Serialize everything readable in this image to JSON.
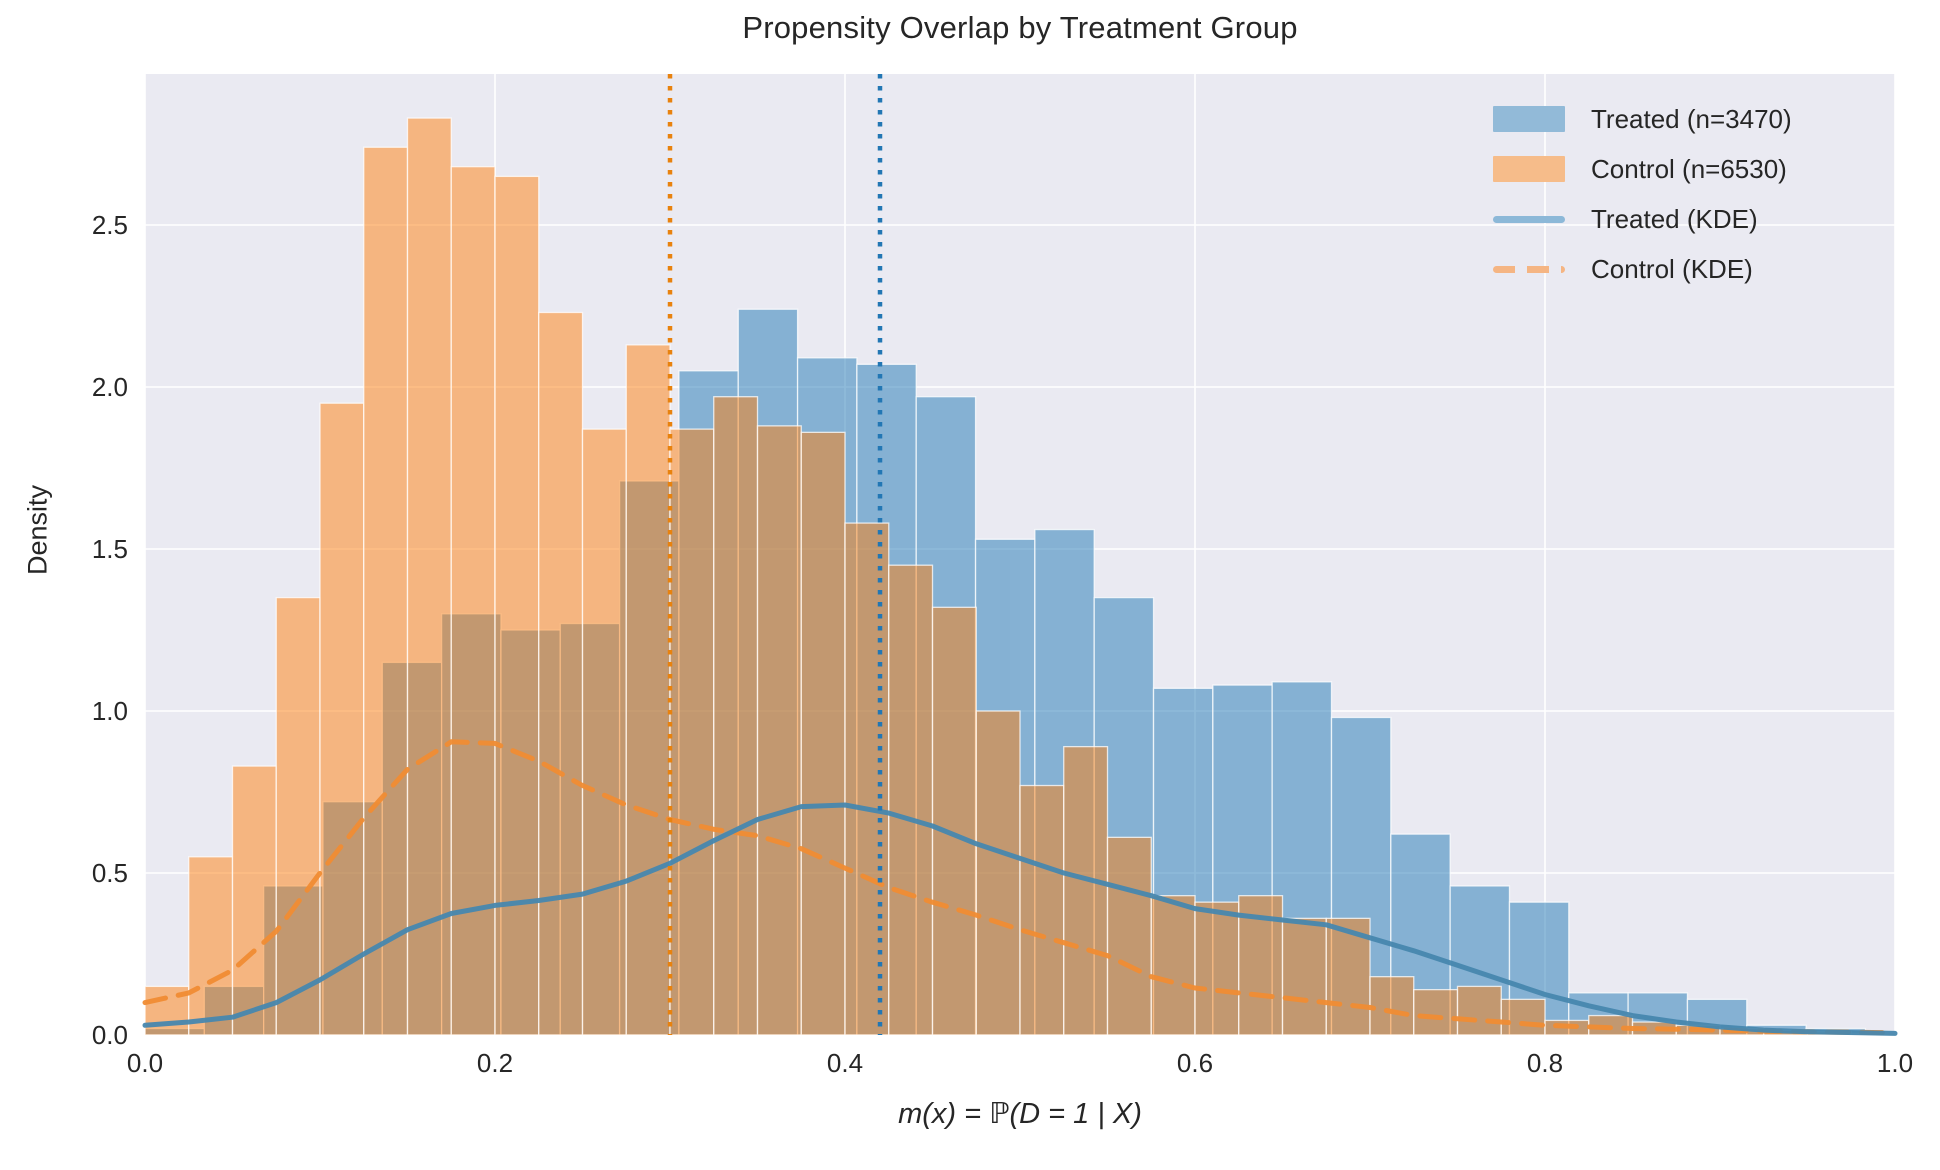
{
  "title": "Propensity Overlap by Treatment Group",
  "colors": {
    "figure_background": "#ffffff",
    "axes_background": "#eaeaf2",
    "gridline": "#ffffff",
    "treated_fill": "#1f77b4",
    "control_fill": "#ff7f0e",
    "treated_kde_line": "#4787ae",
    "control_kde_line": "#f08c33",
    "treated_vline": "#2277b4",
    "control_vline": "#e8820e",
    "bar_edge": "#ffffff",
    "text": "#262626"
  },
  "legend": {
    "entries": [
      {
        "label": "Treated (n=3470)",
        "swatch": "patch",
        "color": "#92bad8"
      },
      {
        "label": "Control (n=6530)",
        "swatch": "patch",
        "color": "#f6bc8a"
      },
      {
        "label": "Treated (KDE)",
        "swatch": "line",
        "color": "#8cb8d8"
      },
      {
        "label": "Control (KDE)",
        "swatch": "dashed",
        "color": "#f5b583"
      }
    ]
  },
  "chart_data": {
    "type": "histogram+kde",
    "title": "Propensity Overlap by Treatment Group",
    "xlabel": "m(x) = ℙ(D = 1 | X)",
    "ylabel": "Density",
    "xlim": [
      0,
      1
    ],
    "ylim": [
      0,
      2.97
    ],
    "grid": true,
    "legend_position": "upper right",
    "x_ticks": [
      0,
      0.2,
      0.4,
      0.6,
      0.8,
      1.0
    ],
    "x_tick_labels": [
      "0.0",
      "0.2",
      "0.4",
      "0.6",
      "0.8",
      "1.0"
    ],
    "y_ticks": [
      0,
      0.5,
      1.0,
      1.5,
      2.0,
      2.5
    ],
    "y_tick_labels": [
      "0.0",
      "0.5",
      "1.0",
      "1.5",
      "2.0",
      "2.5"
    ],
    "series": [
      {
        "name": "Treated (n=3470)",
        "type": "histogram",
        "color_key": "treated_fill",
        "fill_opacity": 0.5,
        "bin_start": 0.0,
        "bin_width": 0.0339,
        "densities": [
          0.02,
          0.15,
          0.46,
          0.72,
          1.15,
          1.3,
          1.25,
          1.27,
          1.71,
          2.05,
          2.24,
          2.09,
          2.07,
          1.97,
          1.53,
          1.56,
          1.35,
          1.07,
          1.08,
          1.09,
          0.98,
          0.62,
          0.46,
          0.41,
          0.13,
          0.13,
          0.11,
          0.03,
          0.02
        ]
      },
      {
        "name": "Control (n=6530)",
        "type": "histogram",
        "color_key": "control_fill",
        "fill_opacity": 0.5,
        "bin_start": 0.0,
        "bin_width": 0.025,
        "densities": [
          0.15,
          0.55,
          0.83,
          1.35,
          1.95,
          2.74,
          2.83,
          2.68,
          2.65,
          2.23,
          1.87,
          2.13,
          1.87,
          1.97,
          1.88,
          1.86,
          1.58,
          1.45,
          1.32,
          1.0,
          0.77,
          0.89,
          0.61,
          0.43,
          0.41,
          0.43,
          0.36,
          0.36,
          0.18,
          0.14,
          0.15,
          0.11,
          0.045,
          0.06,
          0.04,
          0.03,
          0.02,
          0.015,
          0.01,
          0.005
        ]
      },
      {
        "name": "Control (KDE)",
        "type": "kde",
        "style": "dashed",
        "color_key": "control_kde_line",
        "points": [
          [
            0,
            0.1
          ],
          [
            0.025,
            0.13
          ],
          [
            0.05,
            0.2
          ],
          [
            0.075,
            0.32
          ],
          [
            0.1,
            0.5
          ],
          [
            0.125,
            0.67
          ],
          [
            0.15,
            0.82
          ],
          [
            0.175,
            0.905
          ],
          [
            0.2,
            0.9
          ],
          [
            0.225,
            0.845
          ],
          [
            0.25,
            0.77
          ],
          [
            0.275,
            0.71
          ],
          [
            0.3,
            0.665
          ],
          [
            0.325,
            0.635
          ],
          [
            0.35,
            0.615
          ],
          [
            0.375,
            0.575
          ],
          [
            0.4,
            0.515
          ],
          [
            0.425,
            0.455
          ],
          [
            0.45,
            0.41
          ],
          [
            0.475,
            0.37
          ],
          [
            0.5,
            0.325
          ],
          [
            0.525,
            0.285
          ],
          [
            0.55,
            0.245
          ],
          [
            0.575,
            0.18
          ],
          [
            0.6,
            0.145
          ],
          [
            0.625,
            0.13
          ],
          [
            0.65,
            0.115
          ],
          [
            0.675,
            0.1
          ],
          [
            0.7,
            0.085
          ],
          [
            0.725,
            0.06
          ],
          [
            0.75,
            0.05
          ],
          [
            0.775,
            0.04
          ],
          [
            0.8,
            0.03
          ],
          [
            0.825,
            0.025
          ],
          [
            0.85,
            0.02
          ],
          [
            0.875,
            0.018
          ],
          [
            0.9,
            0.015
          ],
          [
            0.925,
            0.012
          ],
          [
            0.95,
            0.01
          ],
          [
            1.0,
            0.007
          ]
        ]
      },
      {
        "name": "Treated (KDE)",
        "type": "kde",
        "style": "solid",
        "color_key": "treated_kde_line",
        "points": [
          [
            0,
            0.03
          ],
          [
            0.025,
            0.04
          ],
          [
            0.05,
            0.055
          ],
          [
            0.075,
            0.1
          ],
          [
            0.1,
            0.17
          ],
          [
            0.125,
            0.25
          ],
          [
            0.15,
            0.325
          ],
          [
            0.175,
            0.375
          ],
          [
            0.2,
            0.4
          ],
          [
            0.225,
            0.415
          ],
          [
            0.25,
            0.435
          ],
          [
            0.275,
            0.475
          ],
          [
            0.3,
            0.53
          ],
          [
            0.325,
            0.6
          ],
          [
            0.35,
            0.665
          ],
          [
            0.375,
            0.705
          ],
          [
            0.4,
            0.71
          ],
          [
            0.425,
            0.685
          ],
          [
            0.45,
            0.645
          ],
          [
            0.475,
            0.59
          ],
          [
            0.5,
            0.545
          ],
          [
            0.525,
            0.5
          ],
          [
            0.55,
            0.465
          ],
          [
            0.575,
            0.43
          ],
          [
            0.6,
            0.39
          ],
          [
            0.625,
            0.37
          ],
          [
            0.65,
            0.355
          ],
          [
            0.675,
            0.34
          ],
          [
            0.7,
            0.3
          ],
          [
            0.725,
            0.26
          ],
          [
            0.75,
            0.215
          ],
          [
            0.775,
            0.17
          ],
          [
            0.8,
            0.125
          ],
          [
            0.825,
            0.09
          ],
          [
            0.85,
            0.06
          ],
          [
            0.875,
            0.04
          ],
          [
            0.9,
            0.025
          ],
          [
            0.925,
            0.015
          ],
          [
            0.95,
            0.01
          ],
          [
            1.0,
            0.005
          ]
        ]
      }
    ],
    "vlines": [
      {
        "x": 0.3,
        "style": "dotted",
        "color_key": "control_vline"
      },
      {
        "x": 0.42,
        "style": "dotted",
        "color_key": "treated_vline"
      }
    ]
  }
}
